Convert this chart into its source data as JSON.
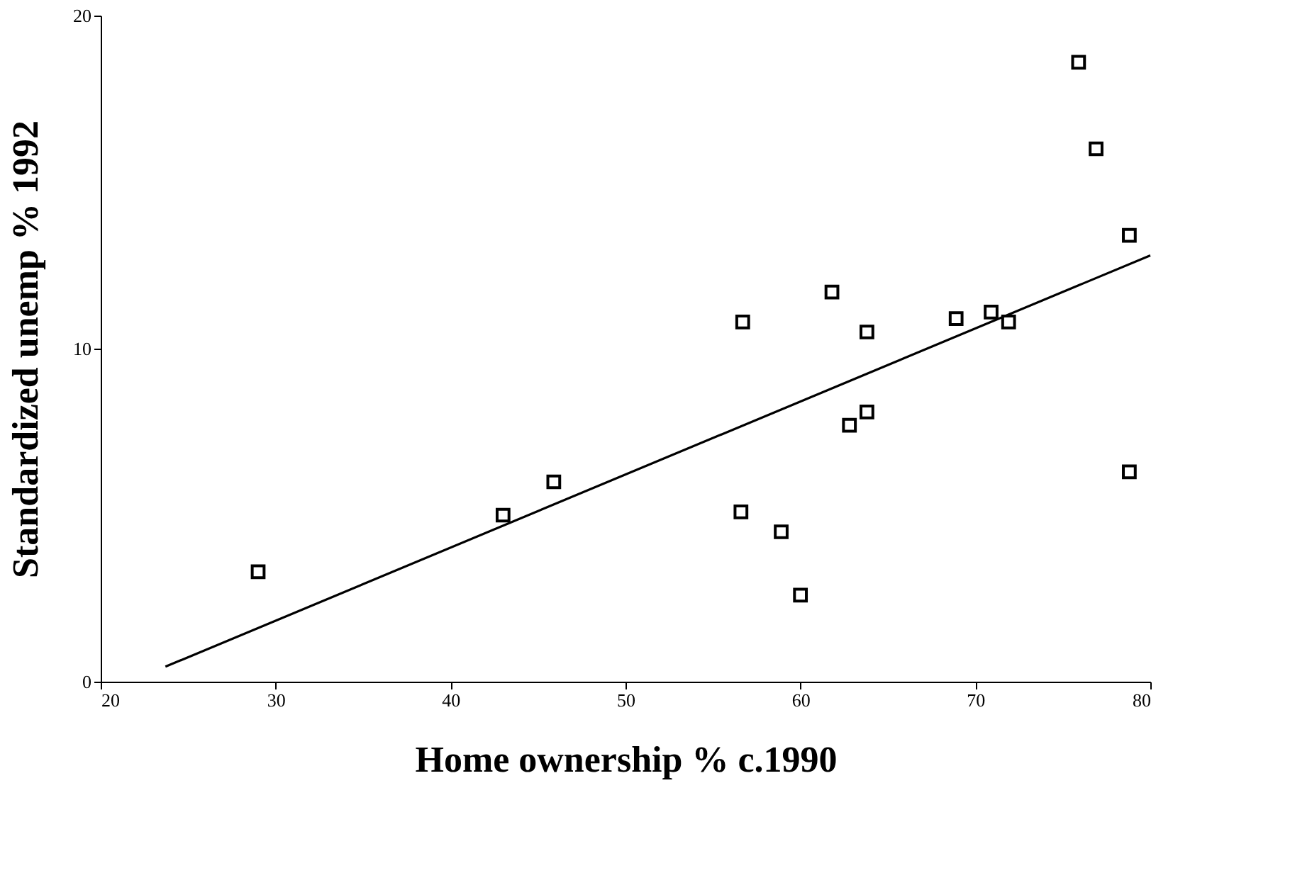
{
  "chart_data": {
    "type": "scatter",
    "xlabel": "Home ownership % c.1990",
    "ylabel": "Standardized unemp % 1992",
    "xlim": [
      20,
      80
    ],
    "ylim": [
      0,
      20
    ],
    "xticks": [
      20,
      30,
      40,
      50,
      60,
      70,
      80
    ],
    "yticks": [
      0,
      10,
      20
    ],
    "grid": false,
    "marker": "square",
    "series": [
      {
        "color": "#000000",
        "x": [
          29.0,
          43.0,
          45.9,
          56.7,
          56.6,
          58.9,
          60.0,
          61.8,
          62.8,
          63.8,
          63.8,
          68.9,
          70.9,
          71.9,
          75.9,
          76.9,
          78.8,
          78.8
        ],
        "values": [
          3.3,
          5.0,
          6.0,
          10.8,
          5.1,
          4.5,
          2.6,
          11.7,
          7.7,
          8.1,
          10.5,
          10.9,
          11.1,
          10.8,
          18.6,
          16.0,
          13.4,
          6.3
        ]
      },
      {
        "type": "line",
        "color": "#000000",
        "marker": "none",
        "line_style": "solid",
        "x": [
          23.7,
          80
        ],
        "values": [
          0.45,
          12.8
        ]
      }
    ]
  }
}
